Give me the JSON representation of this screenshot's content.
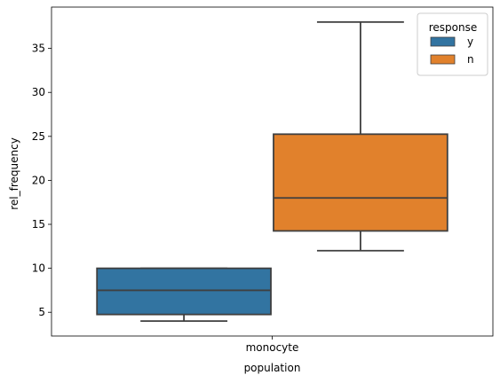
{
  "chart_data": {
    "type": "box",
    "title": "",
    "xlabel": "population",
    "ylabel": "rel_frequency",
    "categories": [
      "monocyte"
    ],
    "ylim": [
      2.3,
      39.7
    ],
    "yticks": [
      5,
      10,
      15,
      20,
      25,
      30,
      35
    ],
    "grid": false,
    "legend": {
      "title": "response",
      "placement": "top-right",
      "entries": [
        "y",
        "n"
      ]
    },
    "series": [
      {
        "name": "y",
        "color": "#3274a1",
        "category": "monocyte",
        "whisker_low": 4.0,
        "q1": 4.75,
        "median": 7.5,
        "q3": 10.0,
        "whisker_high": 10.0
      },
      {
        "name": "n",
        "color": "#e1812c",
        "category": "monocyte",
        "whisker_low": 12.0,
        "q1": 14.25,
        "median": 18.0,
        "q3": 25.25,
        "whisker_high": 38.0
      }
    ]
  }
}
